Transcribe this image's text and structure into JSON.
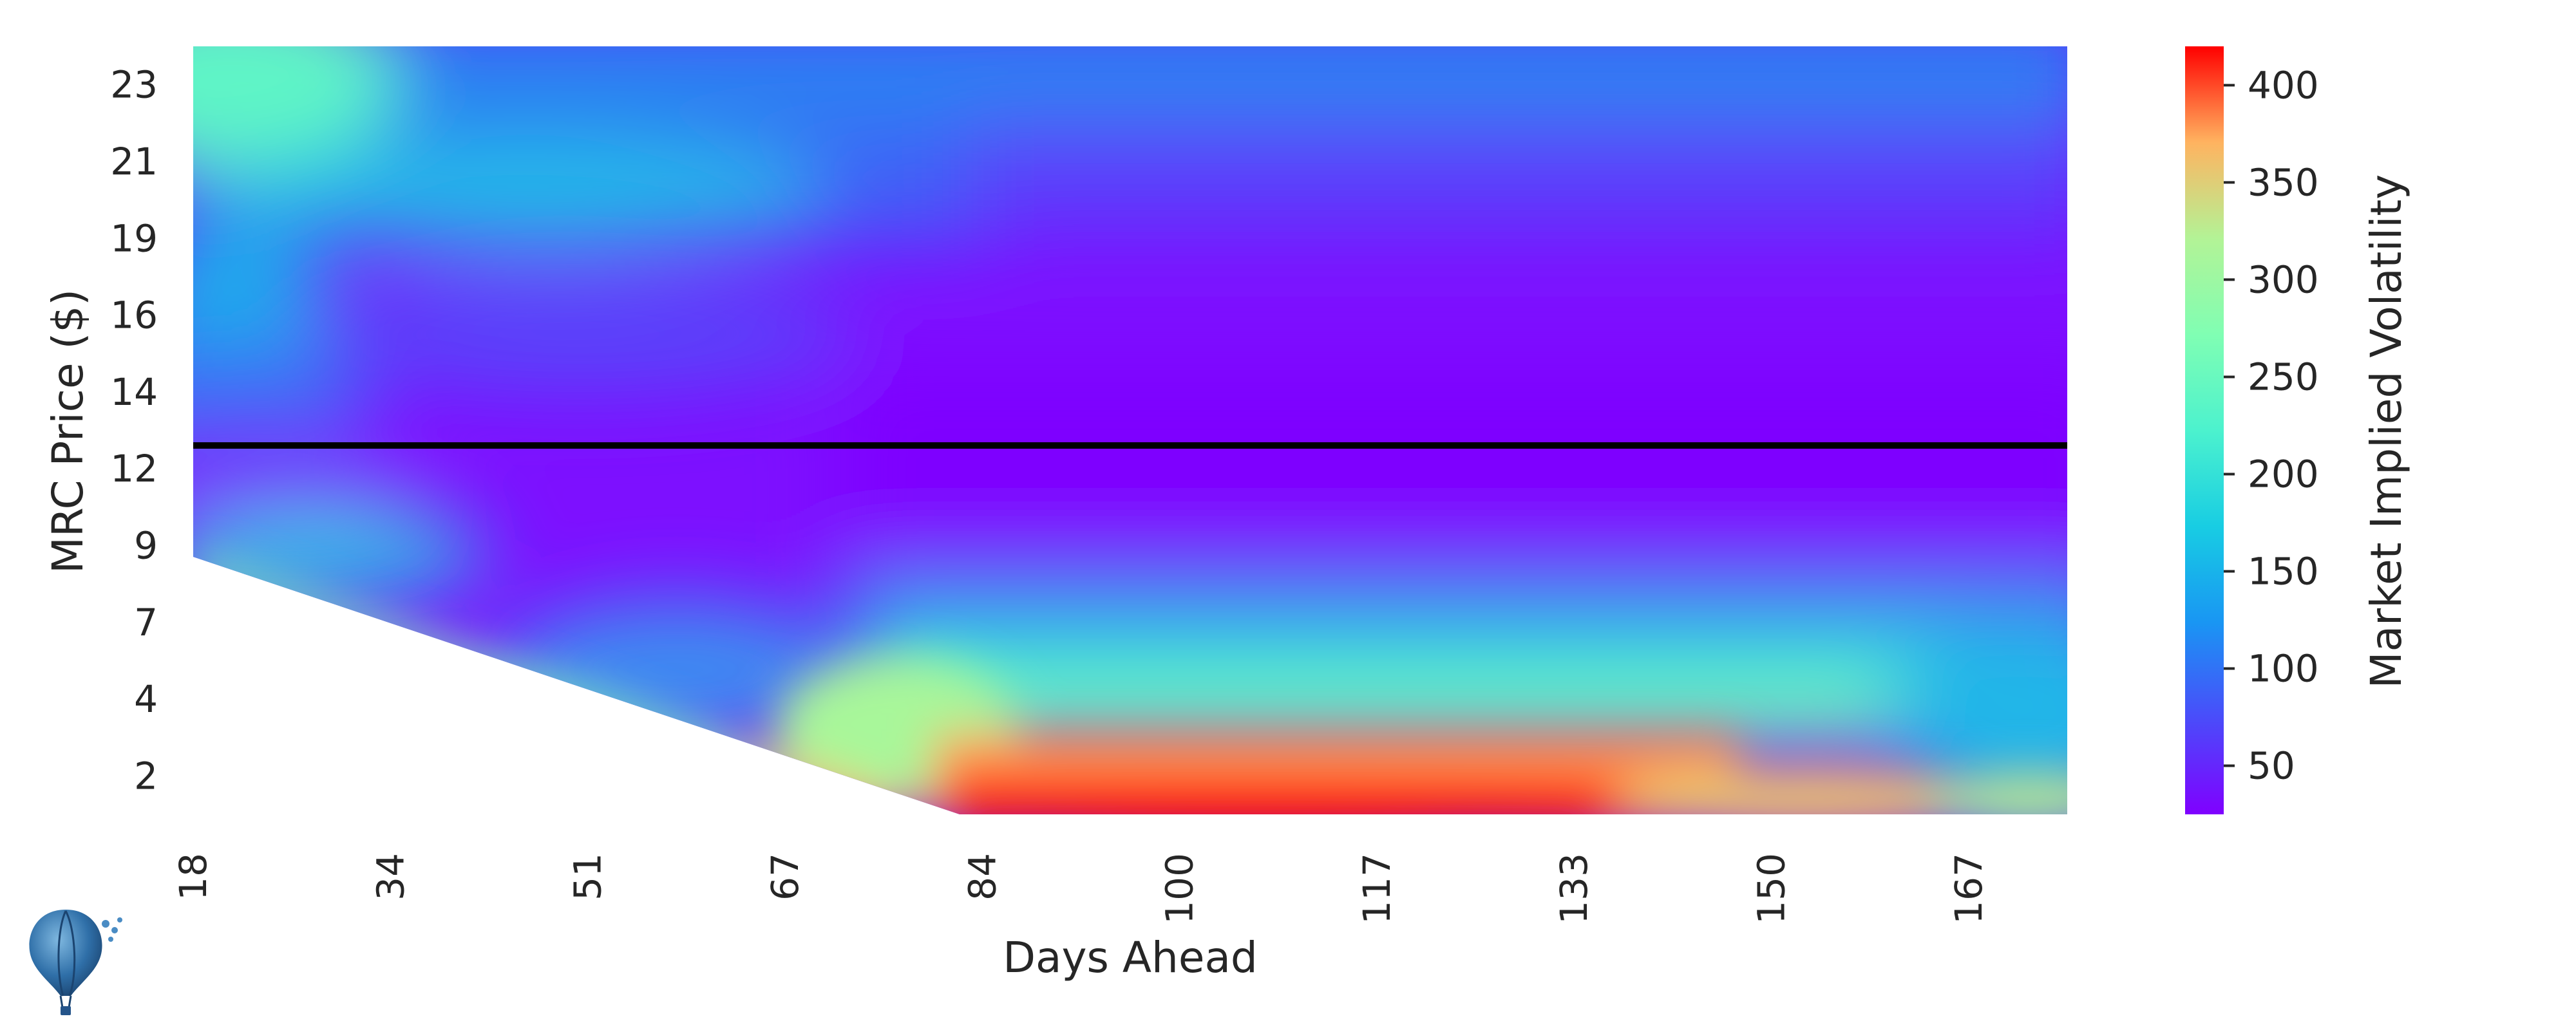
{
  "chart_data": {
    "type": "heatmap",
    "title": "",
    "xlabel": "Days Ahead",
    "ylabel": "MRC Price ($)",
    "x_tick_labels": [
      "18",
      "34",
      "51",
      "67",
      "84",
      "100",
      "117",
      "133",
      "150",
      "167"
    ],
    "y_tick_labels": [
      "23",
      "21",
      "19",
      "16",
      "14",
      "12",
      "9",
      "7",
      "4",
      "2"
    ],
    "xlim": [
      18,
      173
    ],
    "ylim": [
      2,
      24
    ],
    "colorbar": {
      "label": "Market Implied Volatility",
      "ticks": [
        "50",
        "100",
        "150",
        "200",
        "250",
        "300",
        "350",
        "400"
      ],
      "range": [
        25,
        420
      ],
      "colormap": "rainbow"
    },
    "reference_line": {
      "orientation": "horizontal",
      "price": 13,
      "color": "#000000"
    },
    "blank_region": "lower-left triangle (no data below the diagonal from 18 days/9.5 to 81 days/2)",
    "volatility_samples": [
      {
        "days": 18,
        "price": 23,
        "value": 200
      },
      {
        "days": 18,
        "price": 20.5,
        "value": 100
      },
      {
        "days": 18,
        "price": 17,
        "value": 145
      },
      {
        "days": 18,
        "price": 14,
        "value": 100
      },
      {
        "days": 18,
        "price": 12,
        "value": 35
      },
      {
        "days": 18,
        "price": 10,
        "value": 180
      },
      {
        "days": 40,
        "price": 19.5,
        "value": 150
      },
      {
        "days": 40,
        "price": 16,
        "value": 45
      },
      {
        "days": 70,
        "price": 6,
        "value": 220
      },
      {
        "days": 90,
        "price": 2,
        "value": 410
      },
      {
        "days": 100,
        "price": 3.5,
        "value": 360
      },
      {
        "days": 100,
        "price": 11,
        "value": 25
      },
      {
        "days": 130,
        "price": 2,
        "value": 370
      },
      {
        "days": 150,
        "price": 2,
        "value": 300
      },
      {
        "days": 170,
        "price": 2,
        "value": 230
      },
      {
        "days": 170,
        "price": 5,
        "value": 140
      },
      {
        "days": 170,
        "price": 23,
        "value": 95
      },
      {
        "days": 170,
        "price": 11,
        "value": 30
      }
    ]
  }
}
